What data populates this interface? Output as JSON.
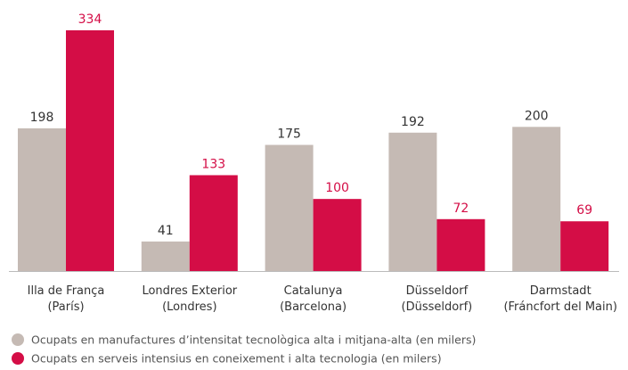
{
  "chart_data": {
    "type": "bar",
    "categories": [
      [
        "Illa de França",
        "(París)"
      ],
      [
        "Londres Exterior",
        "(Londres)"
      ],
      [
        "Catalunya",
        "(Barcelona)"
      ],
      [
        "Düsseldorf",
        "(Düsseldorf)"
      ],
      [
        "Darmstadt",
        "(Fráncfort del Main)"
      ]
    ],
    "series": [
      {
        "name": "Ocupats en manufactures d’intensitat tecnològica alta i mitjana-alta (en milers)",
        "color": "#c5bab4",
        "label_color": "#333333",
        "values": [
          198,
          41,
          175,
          192,
          200
        ]
      },
      {
        "name": "Ocupats en serveis intensius en coneixement i alta tecnologia (en milers)",
        "color": "#d40d46",
        "label_color": "#d40d46",
        "values": [
          334,
          133,
          100,
          72,
          69
        ]
      }
    ]
  }
}
